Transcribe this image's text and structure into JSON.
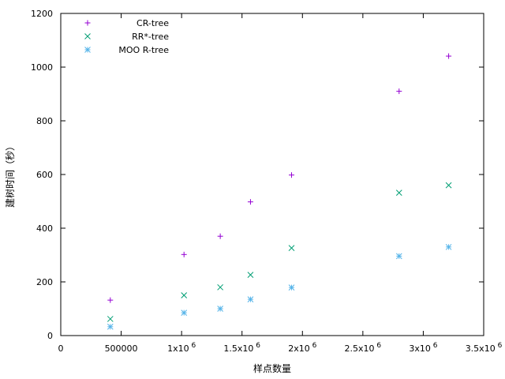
{
  "chart_data": {
    "type": "scatter",
    "title": "",
    "xlabel": "样点数量",
    "ylabel": "建树时间（秒）",
    "xlim": [
      0,
      3500000
    ],
    "ylim": [
      0,
      1200
    ],
    "grid": false,
    "legend_position": "top-left",
    "x_ticks": [
      {
        "value": 0,
        "label": "0",
        "sup": ""
      },
      {
        "value": 500000,
        "label": "500000",
        "sup": ""
      },
      {
        "value": 1000000,
        "label": "1x10",
        "sup": "6"
      },
      {
        "value": 1500000,
        "label": "1.5x10",
        "sup": "6"
      },
      {
        "value": 2000000,
        "label": "2x10",
        "sup": "6"
      },
      {
        "value": 2500000,
        "label": "2.5x10",
        "sup": "6"
      },
      {
        "value": 3000000,
        "label": "3x10",
        "sup": "6"
      },
      {
        "value": 3500000,
        "label": "3.5x10",
        "sup": "6"
      }
    ],
    "y_ticks": [
      {
        "value": 0,
        "label": "0"
      },
      {
        "value": 200,
        "label": "200"
      },
      {
        "value": 400,
        "label": "400"
      },
      {
        "value": 600,
        "label": "600"
      },
      {
        "value": 800,
        "label": "800"
      },
      {
        "value": 1000,
        "label": "1000"
      },
      {
        "value": 1200,
        "label": "1200"
      }
    ],
    "series": [
      {
        "name": "CR-tree",
        "marker": "plus",
        "color": "#9400d3",
        "x": [
          410000,
          1020000,
          1320000,
          1570000,
          1910000,
          2800000,
          3210000
        ],
        "y": [
          132,
          302,
          370,
          498,
          598,
          910,
          1041
        ]
      },
      {
        "name": "RR*-tree",
        "marker": "cross",
        "color": "#009e73",
        "x": [
          410000,
          1020000,
          1320000,
          1570000,
          1910000,
          2800000,
          3210000
        ],
        "y": [
          62,
          150,
          180,
          226,
          326,
          532,
          560
        ]
      },
      {
        "name": "MOO R-tree",
        "marker": "asterisk",
        "color": "#56b4e9",
        "x": [
          410000,
          1020000,
          1320000,
          1570000,
          1910000,
          2800000,
          3210000
        ],
        "y": [
          33,
          85,
          100,
          135,
          179,
          296,
          330
        ]
      }
    ]
  }
}
